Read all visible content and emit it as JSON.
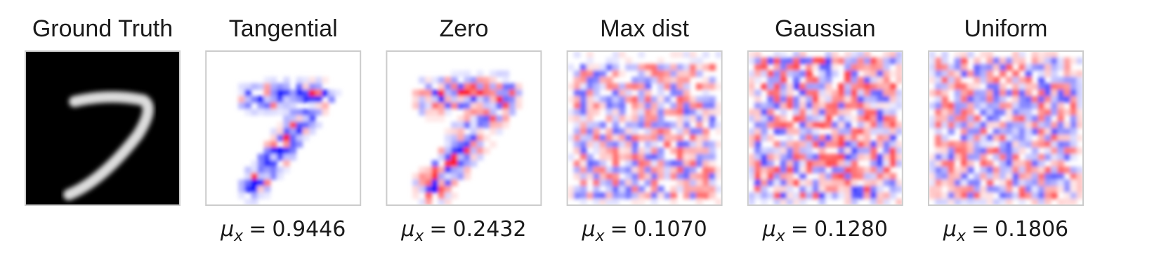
{
  "panels": [
    {
      "title": "Ground Truth"
    },
    {
      "title": "Tangential",
      "caption": {
        "symbol": "μ",
        "subscript": "x",
        "relation": "=",
        "value": "0.9446"
      }
    },
    {
      "title": "Zero",
      "caption": {
        "symbol": "μ",
        "subscript": "x",
        "relation": "=",
        "value": "0.2432"
      }
    },
    {
      "title": "Max  dist",
      "caption": {
        "symbol": "μ",
        "subscript": "x",
        "relation": "=",
        "value": "0.1070"
      }
    },
    {
      "title": "Gaussian",
      "caption": {
        "symbol": "μ",
        "subscript": "x",
        "relation": "=",
        "value": "0.1280"
      }
    },
    {
      "title": "Uniform",
      "caption": {
        "symbol": "μ",
        "subscript": "x",
        "relation": "=",
        "value": "0.1806"
      }
    }
  ]
}
